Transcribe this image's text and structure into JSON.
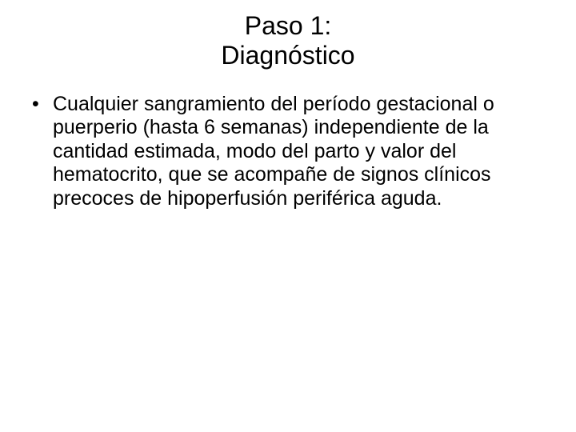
{
  "slide": {
    "title_line1": "Paso 1:",
    "title_line2": "Diagnóstico",
    "bullet_text": "Cualquier sangramiento del período gestacional o puerperio (hasta 6 semanas) independiente de la cantidad estimada, modo del parto y valor del hematocrito, que se acompañe de signos clínicos precoces de hipoperfusión periférica aguda.",
    "title_fontsize": 32,
    "body_fontsize": 25,
    "text_color": "#000000",
    "background_color": "#ffffff",
    "font_family": "Arial"
  }
}
